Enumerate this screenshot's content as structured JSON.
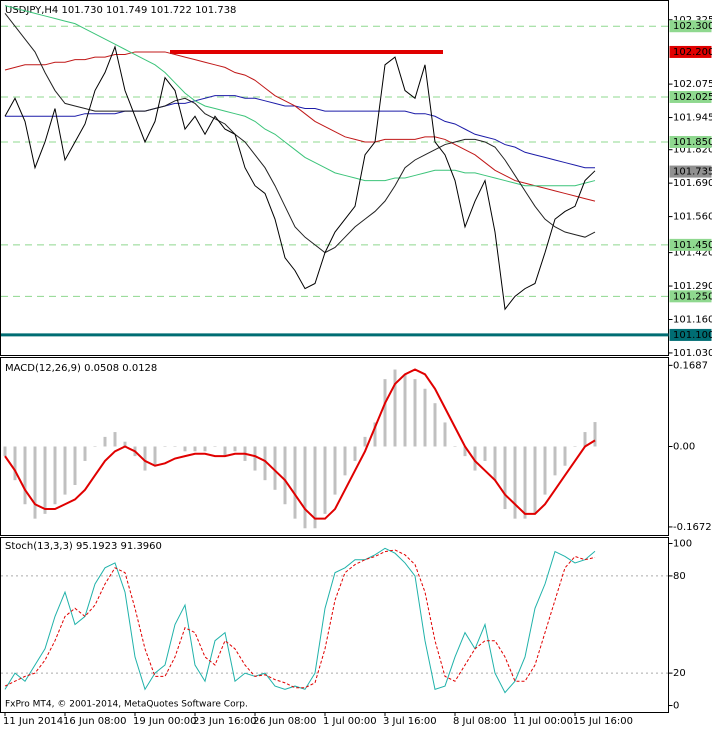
{
  "chart_data": [
    {
      "type": "line",
      "title": "USDJPY,H4  101.730 101.749 101.722 101.738",
      "categories": [
        "11 Jun 2014",
        null,
        null,
        null,
        null,
        null,
        "16 Jun 08:00",
        null,
        null,
        null,
        null,
        null,
        null,
        "19 Jun 00:00",
        null,
        null,
        null,
        null,
        null,
        "23 Jun 16:00",
        null,
        null,
        null,
        null,
        null,
        "26 Jun 08:00",
        null,
        null,
        null,
        null,
        null,
        null,
        "1 Jul 00:00",
        null,
        null,
        null,
        null,
        null,
        "3 Jul 16:00",
        null,
        null,
        null,
        null,
        null,
        null,
        "8 Jul 08:00",
        null,
        null,
        null,
        null,
        null,
        "11 Jul 00:00",
        null,
        null,
        null,
        null,
        null,
        "15 Jul 16:00",
        null,
        null
      ],
      "ylim": [
        101.02,
        102.4
      ],
      "yticks": [
        102.325,
        102.075,
        101.945,
        {
          "value": 101.82,
          "label": "101.820"
        },
        {
          "value": 101.69,
          "label": "101.690"
        },
        {
          "value": 101.56,
          "label": "101.560"
        },
        {
          "value": 101.42,
          "label": "101.420"
        },
        {
          "value": 101.29,
          "label": "101.290"
        },
        {
          "value": 101.16,
          "label": "101.160"
        },
        {
          "value": 101.03,
          "label": "101.030"
        }
      ],
      "levels": [
        {
          "value": 102.3,
          "label": "102.300",
          "color": "#8fd88f",
          "style": "dashed"
        },
        {
          "value": 102.2,
          "label": "102.200",
          "color": "#e00000",
          "style": "segment"
        },
        {
          "value": 102.025,
          "label": "102.025",
          "color": "#8fd88f",
          "style": "dashed"
        },
        {
          "value": 101.85,
          "label": "101.850",
          "color": "#8fd88f",
          "style": "dashed"
        },
        {
          "value": 101.735,
          "label": "101.735",
          "color": "#909090",
          "style": "none"
        },
        {
          "value": 101.45,
          "label": "101.450",
          "color": "#8fd88f",
          "style": "dashed"
        },
        {
          "value": 101.25,
          "label": "101.250",
          "color": "#8fd88f",
          "style": "dashed"
        },
        {
          "value": 101.1,
          "label": "101.100",
          "color": "#006d73",
          "style": "solid"
        }
      ],
      "series": [
        {
          "color": "#1c1ca8",
          "values": [
            101.95,
            101.95,
            101.95,
            101.95,
            101.95,
            101.95,
            101.95,
            101.95,
            101.96,
            101.96,
            101.96,
            101.96,
            101.97,
            101.97,
            101.97,
            101.98,
            101.99,
            102.0,
            102.0,
            102.01,
            102.02,
            102.03,
            102.03,
            102.03,
            102.02,
            102.02,
            102.01,
            102.0,
            101.99,
            101.99,
            101.98,
            101.98,
            101.97,
            101.97,
            101.97,
            101.97,
            101.97,
            101.97,
            101.97,
            101.97,
            101.97,
            101.96,
            101.96,
            101.95,
            101.93,
            101.92,
            101.9,
            101.88,
            101.87,
            101.86,
            101.84,
            101.83,
            101.81,
            101.8,
            101.79,
            101.78,
            101.77,
            101.76,
            101.75,
            101.75
          ]
        },
        {
          "color": "#c01818",
          "values": [
            102.13,
            102.14,
            102.15,
            102.15,
            102.15,
            102.16,
            102.16,
            102.17,
            102.17,
            102.18,
            102.18,
            102.19,
            102.19,
            102.2,
            102.2,
            102.2,
            102.2,
            102.19,
            102.18,
            102.17,
            102.16,
            102.15,
            102.14,
            102.12,
            102.11,
            102.09,
            102.06,
            102.03,
            102.01,
            101.99,
            101.96,
            101.93,
            101.91,
            101.89,
            101.87,
            101.86,
            101.85,
            101.85,
            101.86,
            101.86,
            101.86,
            101.86,
            101.87,
            101.87,
            101.86,
            101.84,
            101.82,
            101.8,
            101.77,
            101.74,
            101.72,
            101.7,
            101.69,
            101.68,
            101.67,
            101.66,
            101.65,
            101.64,
            101.63,
            101.62
          ]
        },
        {
          "color": "#3cc47a",
          "values": [
            102.38,
            102.37,
            102.36,
            102.35,
            102.34,
            102.33,
            102.32,
            102.31,
            102.29,
            102.27,
            102.25,
            102.23,
            102.21,
            102.19,
            102.17,
            102.15,
            102.12,
            102.08,
            102.04,
            102.01,
            101.99,
            101.98,
            101.97,
            101.96,
            101.95,
            101.93,
            101.9,
            101.88,
            101.85,
            101.82,
            101.79,
            101.77,
            101.75,
            101.73,
            101.72,
            101.71,
            101.7,
            101.7,
            101.7,
            101.71,
            101.71,
            101.72,
            101.73,
            101.74,
            101.74,
            101.74,
            101.73,
            101.73,
            101.72,
            101.71,
            101.7,
            101.69,
            101.68,
            101.68,
            101.68,
            101.68,
            101.68,
            101.68,
            101.69,
            101.7
          ]
        },
        {
          "color": "#222222",
          "values": [
            102.35,
            102.3,
            102.25,
            102.2,
            102.12,
            102.05,
            102.0,
            101.99,
            101.98,
            101.97,
            101.97,
            101.97,
            101.97,
            101.97,
            101.97,
            101.98,
            101.99,
            102.01,
            102.02,
            102.0,
            101.96,
            101.94,
            101.92,
            101.88,
            101.85,
            101.8,
            101.75,
            101.68,
            101.6,
            101.52,
            101.48,
            101.45,
            101.42,
            101.44,
            101.48,
            101.52,
            101.55,
            101.58,
            101.62,
            101.68,
            101.75,
            101.78,
            101.8,
            101.82,
            101.84,
            101.85,
            101.86,
            101.86,
            101.85,
            101.83,
            101.78,
            101.72,
            101.66,
            101.6,
            101.55,
            101.52,
            101.5,
            101.49,
            101.48,
            101.5
          ]
        },
        {
          "color": "#000000",
          "values": [
            101.95,
            102.02,
            101.93,
            101.75,
            101.85,
            101.98,
            101.78,
            101.85,
            101.92,
            102.05,
            102.12,
            102.22,
            102.05,
            101.95,
            101.85,
            101.93,
            102.1,
            102.05,
            101.9,
            101.95,
            101.88,
            101.95,
            101.9,
            101.88,
            101.75,
            101.68,
            101.65,
            101.55,
            101.4,
            101.35,
            101.28,
            101.3,
            101.42,
            101.5,
            101.55,
            101.6,
            101.8,
            101.85,
            102.15,
            102.18,
            102.05,
            102.02,
            102.15,
            101.85,
            101.8,
            101.7,
            101.52,
            101.62,
            101.7,
            101.5,
            101.2,
            101.25,
            101.28,
            101.3,
            101.42,
            101.55,
            101.58,
            101.6,
            101.7,
            101.738
          ]
        }
      ]
    },
    {
      "type": "bar",
      "title": "MACD(12,26,9) 0.0508 0.0128",
      "ylim": [
        -0.185,
        0.185
      ],
      "yticks": [
        0.1687,
        {
          "value": 0,
          "label": "0.00"
        },
        -0.1672
      ],
      "series": [
        {
          "type": "bar",
          "color": "#c0c0c0",
          "values": [
            -0.02,
            -0.07,
            -0.12,
            -0.15,
            -0.14,
            -0.12,
            -0.1,
            -0.08,
            -0.03,
            0,
            0.02,
            0.03,
            0.01,
            -0.02,
            -0.05,
            -0.04,
            0,
            0,
            -0.01,
            -0.01,
            -0.01,
            0,
            -0.02,
            -0.01,
            -0.03,
            -0.05,
            -0.07,
            -0.09,
            -0.12,
            -0.15,
            -0.17,
            -0.17,
            -0.14,
            -0.1,
            -0.06,
            -0.03,
            0.02,
            0.05,
            0.14,
            0.16,
            0.15,
            0.14,
            0.12,
            0.09,
            0.05,
            0,
            -0.02,
            -0.05,
            -0.03,
            -0.07,
            -0.13,
            -0.15,
            -0.15,
            -0.14,
            -0.1,
            -0.06,
            -0.04,
            0,
            0.03,
            0.0508
          ]
        },
        {
          "type": "line",
          "color": "#e00000",
          "values": [
            -0.02,
            -0.05,
            -0.09,
            -0.12,
            -0.13,
            -0.13,
            -0.12,
            -0.11,
            -0.09,
            -0.06,
            -0.03,
            -0.01,
            0,
            -0.01,
            -0.03,
            -0.04,
            -0.035,
            -0.025,
            -0.02,
            -0.015,
            -0.015,
            -0.02,
            -0.02,
            -0.015,
            -0.015,
            -0.02,
            -0.03,
            -0.05,
            -0.07,
            -0.1,
            -0.13,
            -0.15,
            -0.15,
            -0.13,
            -0.09,
            -0.05,
            -0.01,
            0.04,
            0.09,
            0.13,
            0.15,
            0.16,
            0.15,
            0.12,
            0.08,
            0.04,
            0,
            -0.03,
            -0.05,
            -0.07,
            -0.1,
            -0.12,
            -0.14,
            -0.14,
            -0.12,
            -0.09,
            -0.06,
            -0.03,
            0,
            0.0128
          ]
        }
      ]
    },
    {
      "type": "line",
      "title": "Stoch(13,3,3) 95.1923 91.3960",
      "annotation": "FxPro MT4, © 2001-2014, MetaQuotes Software Corp.",
      "ylim": [
        -4.3,
        103.7
      ],
      "yticks": [
        100,
        80,
        20,
        0
      ],
      "series": [
        {
          "type": "line",
          "color": "#20b2aa",
          "values": [
            10,
            20,
            15,
            25,
            35,
            55,
            70,
            50,
            55,
            75,
            85,
            88,
            70,
            30,
            10,
            20,
            25,
            50,
            62,
            25,
            15,
            40,
            45,
            15,
            20,
            18,
            20,
            12,
            10,
            12,
            10,
            20,
            60,
            82,
            85,
            90,
            90,
            93,
            97,
            94,
            88,
            80,
            40,
            10,
            12,
            30,
            45,
            35,
            50,
            20,
            8,
            15,
            30,
            60,
            75,
            95,
            92,
            88,
            90,
            95.1923
          ]
        },
        {
          "type": "line",
          "dash": true,
          "color": "#e00000",
          "values": [
            12,
            15,
            18,
            20,
            28,
            40,
            55,
            60,
            55,
            62,
            75,
            85,
            82,
            60,
            35,
            18,
            18,
            30,
            48,
            45,
            30,
            25,
            40,
            35,
            25,
            18,
            19,
            16,
            14,
            11,
            11,
            14,
            35,
            65,
            82,
            87,
            90,
            92,
            95,
            96,
            93,
            87,
            70,
            40,
            18,
            15,
            25,
            35,
            40,
            40,
            30,
            15,
            15,
            25,
            45,
            65,
            85,
            92,
            90,
            91.396
          ]
        }
      ]
    }
  ]
}
